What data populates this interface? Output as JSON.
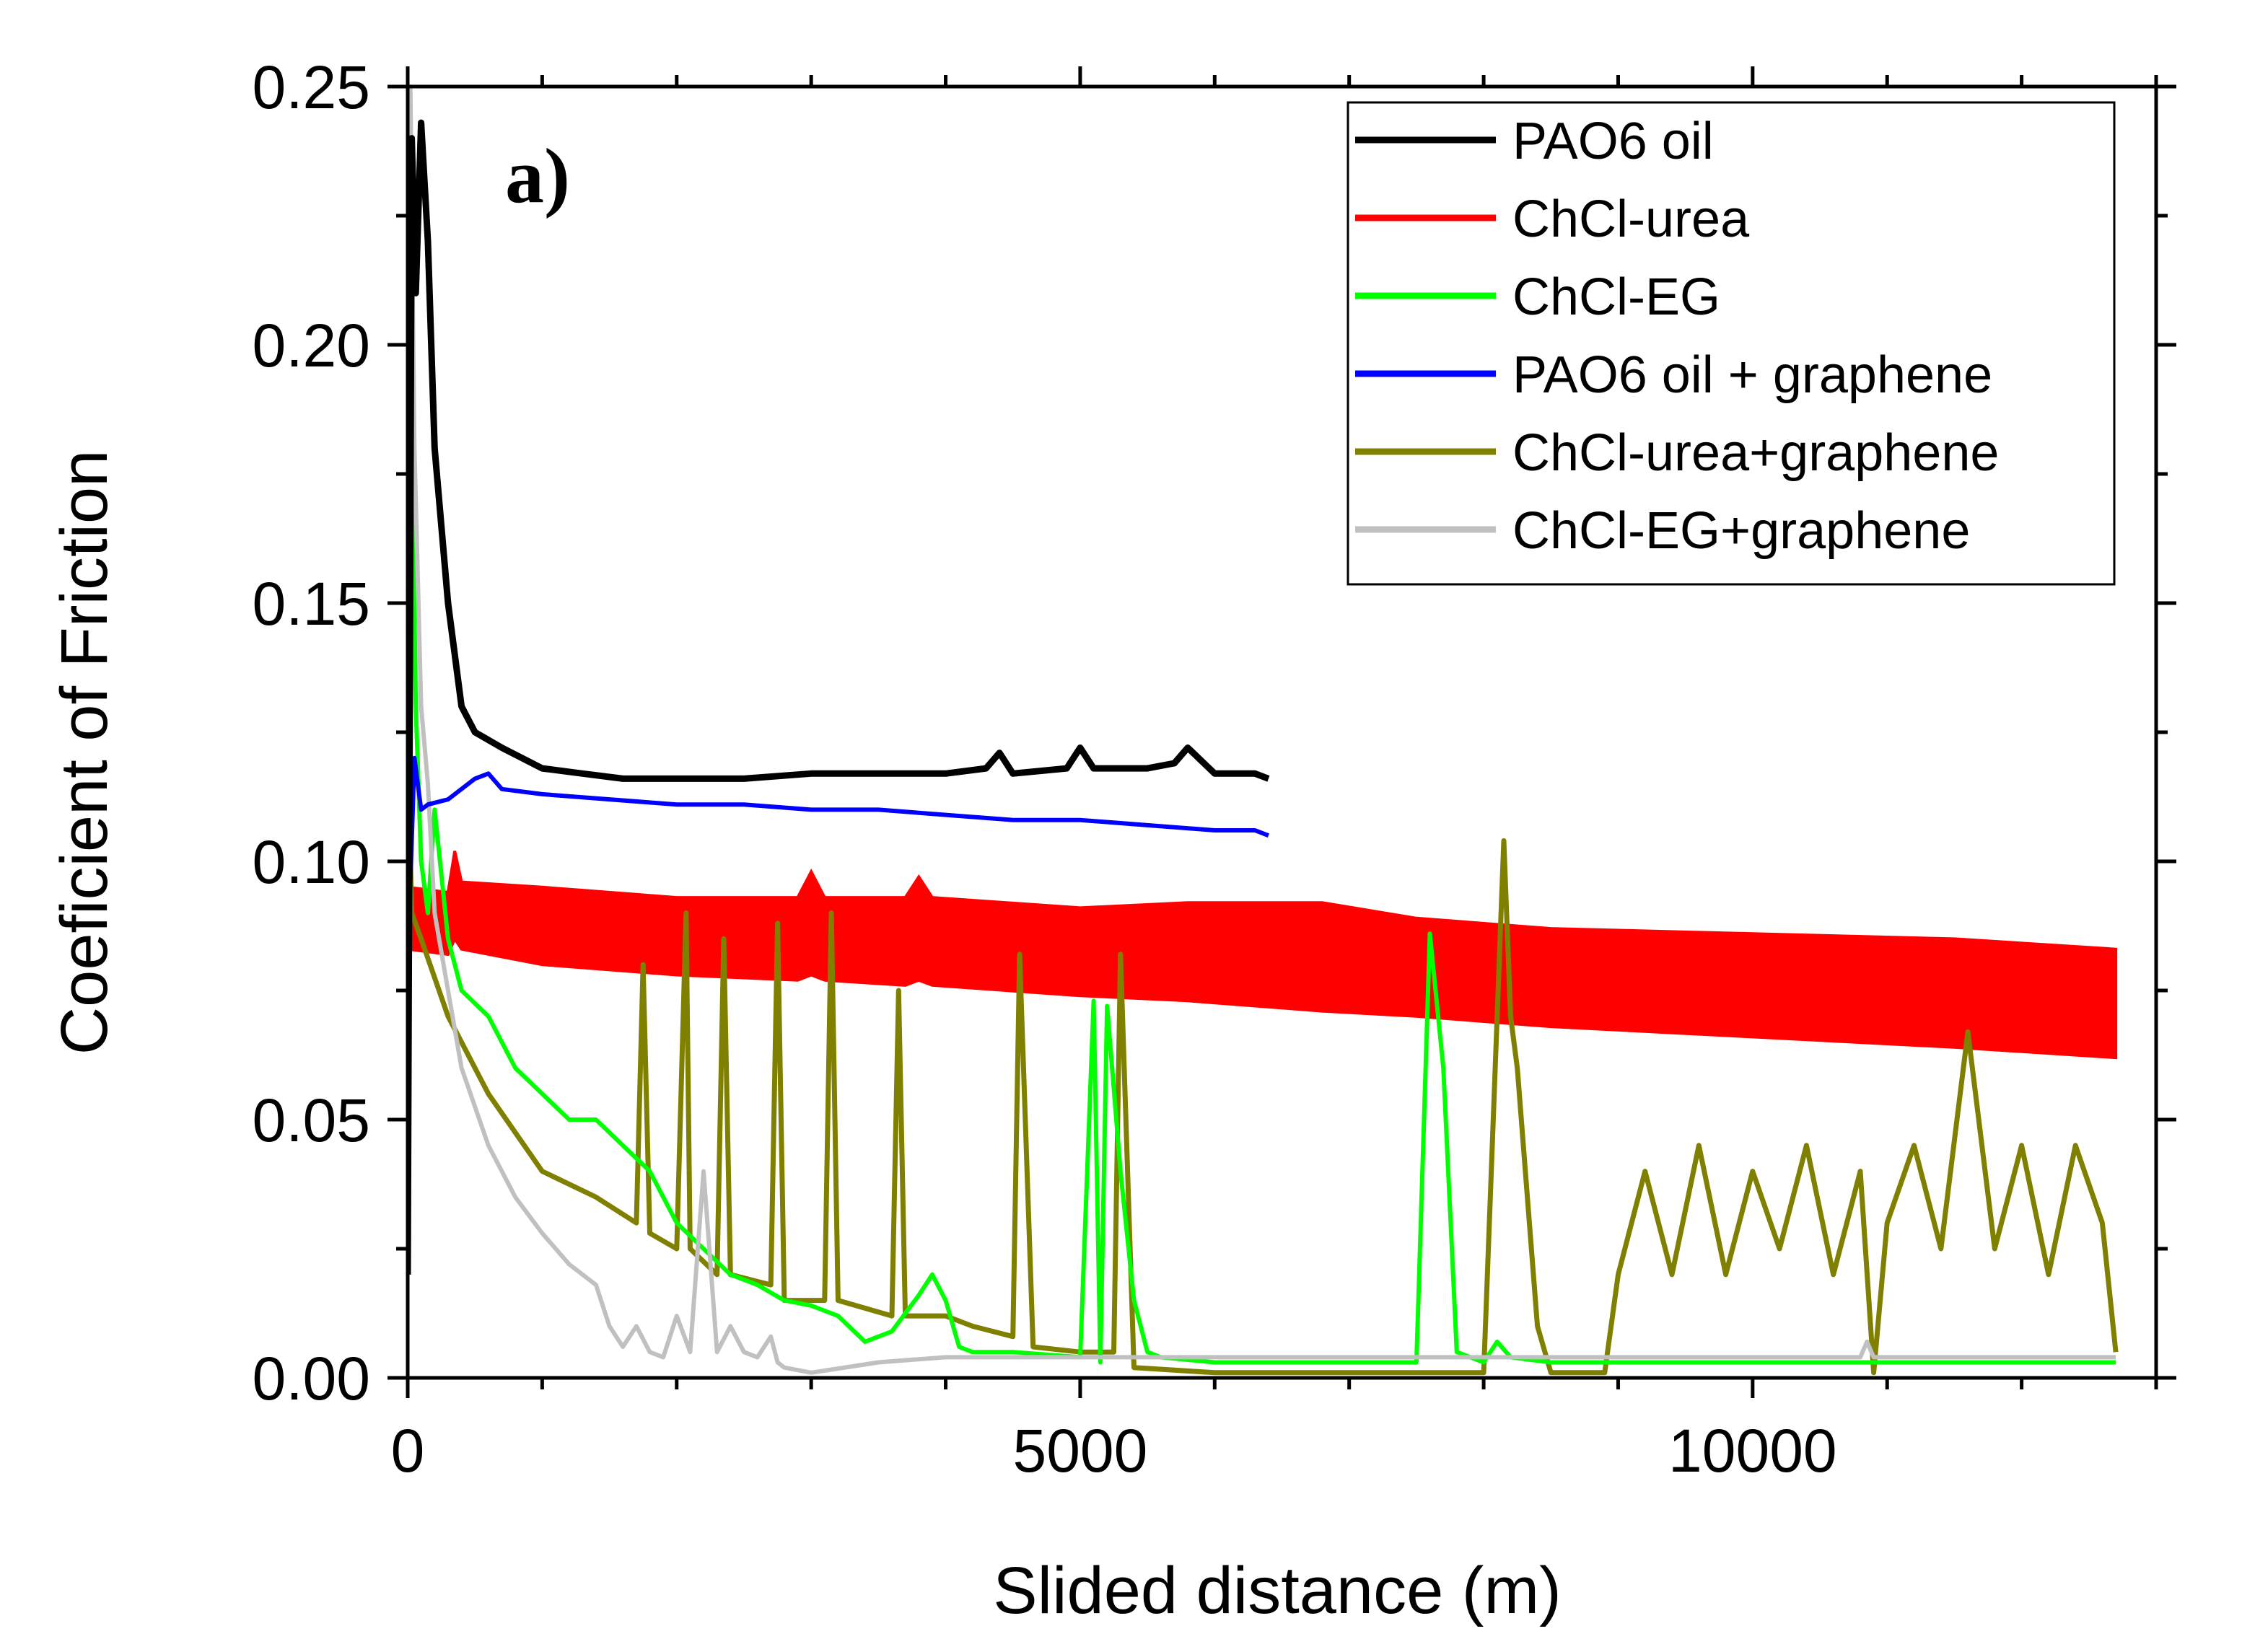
{
  "chart_data": {
    "type": "line",
    "panel_label": "a)",
    "xlabel": "Slided distance (m)",
    "ylabel": "Coeficient of Friction",
    "xlim": [
      0,
      13000
    ],
    "ylim": [
      0,
      0.25
    ],
    "x_ticks": [
      0,
      5000,
      10000
    ],
    "x_tick_labels": [
      "0",
      "5000",
      "10000"
    ],
    "y_ticks": [
      0,
      0.05,
      0.1,
      0.15,
      0.2,
      0.25
    ],
    "y_tick_labels": [
      "0.00",
      "0.05",
      "0.10",
      "0.15",
      "0.20",
      "0.25"
    ],
    "legend_position": "top-right",
    "series": [
      {
        "name": "PAO6 oil",
        "color": "#000000",
        "width": 9,
        "x": [
          0,
          30,
          60,
          100,
          150,
          200,
          300,
          400,
          500,
          700,
          1000,
          1300,
          1600,
          2000,
          2500,
          3000,
          3500,
          4000,
          4300,
          4400,
          4500,
          4900,
          5000,
          5100,
          5500,
          5700,
          5800,
          6000,
          6300,
          6400
        ],
        "y": [
          0.02,
          0.24,
          0.21,
          0.243,
          0.22,
          0.18,
          0.15,
          0.13,
          0.125,
          0.122,
          0.118,
          0.117,
          0.116,
          0.116,
          0.116,
          0.117,
          0.117,
          0.117,
          0.118,
          0.121,
          0.117,
          0.118,
          0.122,
          0.118,
          0.118,
          0.119,
          0.122,
          0.117,
          0.117,
          0.116
        ]
      },
      {
        "name": "ChCl-urea",
        "color": "#ff0000",
        "band": true,
        "x": [
          0,
          300,
          350,
          400,
          1000,
          2000,
          2900,
          3000,
          3100,
          3700,
          3800,
          3900,
          5000,
          5800,
          6800,
          7500,
          8500,
          10000,
          11500,
          12700
        ],
        "y_upper": [
          0.095,
          0.094,
          0.102,
          0.096,
          0.095,
          0.093,
          0.093,
          0.098,
          0.093,
          0.093,
          0.097,
          0.093,
          0.091,
          0.092,
          0.092,
          0.089,
          0.087,
          0.086,
          0.085,
          0.083
        ],
        "y_lower": [
          0.083,
          0.082,
          0.085,
          0.083,
          0.08,
          0.078,
          0.077,
          0.078,
          0.077,
          0.076,
          0.077,
          0.076,
          0.074,
          0.073,
          0.071,
          0.07,
          0.068,
          0.066,
          0.064,
          0.062
        ]
      },
      {
        "name": "ChCl-EG",
        "color": "#00ff00",
        "width": 6,
        "x": [
          0,
          20,
          60,
          100,
          150,
          200,
          300,
          400,
          600,
          800,
          1000,
          1200,
          1400,
          1600,
          1800,
          2000,
          2200,
          2400,
          2600,
          2800,
          3000,
          3200,
          3400,
          3600,
          3800,
          3900,
          4000,
          4100,
          4200,
          4500,
          5000,
          5100,
          5150,
          5200,
          5300,
          5400,
          5500,
          5600,
          6000,
          7000,
          7500,
          7600,
          7700,
          7800,
          8000,
          8100,
          8200,
          8500,
          10000,
          12700
        ],
        "y": [
          0.05,
          0.205,
          0.13,
          0.1,
          0.09,
          0.11,
          0.085,
          0.075,
          0.07,
          0.06,
          0.055,
          0.05,
          0.05,
          0.045,
          0.04,
          0.03,
          0.025,
          0.02,
          0.018,
          0.015,
          0.014,
          0.012,
          0.007,
          0.009,
          0.016,
          0.02,
          0.015,
          0.006,
          0.005,
          0.005,
          0.004,
          0.073,
          0.003,
          0.072,
          0.04,
          0.015,
          0.005,
          0.004,
          0.003,
          0.003,
          0.003,
          0.086,
          0.06,
          0.005,
          0.003,
          0.007,
          0.004,
          0.003,
          0.003,
          0.003
        ]
      },
      {
        "name": "PAO6 oil + graphene",
        "color": "#0000ff",
        "width": 6,
        "x": [
          0,
          50,
          100,
          150,
          300,
          500,
          600,
          700,
          1000,
          1500,
          2000,
          2500,
          3000,
          3500,
          4000,
          4500,
          5000,
          5500,
          6000,
          6300,
          6400
        ],
        "y": [
          0.08,
          0.12,
          0.11,
          0.111,
          0.112,
          0.116,
          0.117,
          0.114,
          0.113,
          0.112,
          0.111,
          0.111,
          0.11,
          0.11,
          0.109,
          0.108,
          0.108,
          0.107,
          0.106,
          0.106,
          0.105
        ]
      },
      {
        "name": "ChCl-urea+graphene",
        "color": "#808000",
        "width": 7,
        "x": [
          0,
          30,
          100,
          300,
          600,
          1000,
          1400,
          1700,
          1750,
          1800,
          2000,
          2070,
          2100,
          2300,
          2350,
          2400,
          2700,
          2750,
          2800,
          3100,
          3150,
          3200,
          3600,
          3650,
          3700,
          4000,
          4200,
          4500,
          4550,
          4650,
          5000,
          5250,
          5300,
          5400,
          6000,
          7000,
          8000,
          8150,
          8200,
          8250,
          8400,
          8500,
          8900,
          9000,
          9200,
          9400,
          9600,
          9800,
          10000,
          10200,
          10400,
          10600,
          10800,
          10900,
          11000,
          11200,
          11400,
          11600,
          11800,
          12000,
          12200,
          12400,
          12600,
          12700
        ],
        "y": [
          0.12,
          0.09,
          0.085,
          0.07,
          0.055,
          0.04,
          0.035,
          0.03,
          0.08,
          0.028,
          0.025,
          0.09,
          0.025,
          0.02,
          0.085,
          0.02,
          0.018,
          0.088,
          0.015,
          0.015,
          0.09,
          0.015,
          0.012,
          0.075,
          0.012,
          0.012,
          0.01,
          0.008,
          0.082,
          0.006,
          0.005,
          0.005,
          0.082,
          0.002,
          0.001,
          0.001,
          0.001,
          0.104,
          0.07,
          0.06,
          0.01,
          0.001,
          0.001,
          0.02,
          0.04,
          0.02,
          0.045,
          0.02,
          0.04,
          0.025,
          0.045,
          0.02,
          0.04,
          0.001,
          0.03,
          0.045,
          0.025,
          0.067,
          0.025,
          0.045,
          0.02,
          0.045,
          0.03,
          0.005
        ]
      },
      {
        "name": "ChCl-EG+graphene",
        "color": "#c0c0c0",
        "width": 6,
        "x": [
          0,
          20,
          50,
          100,
          150,
          200,
          300,
          400,
          600,
          800,
          1000,
          1200,
          1400,
          1500,
          1600,
          1700,
          1800,
          1900,
          2000,
          2100,
          2200,
          2300,
          2400,
          2500,
          2600,
          2700,
          2750,
          2800,
          3000,
          3500,
          4000,
          5000,
          6000,
          8000,
          10000,
          10800,
          10850,
          10900,
          12700
        ],
        "y": [
          0.08,
          0.25,
          0.18,
          0.13,
          0.115,
          0.09,
          0.075,
          0.06,
          0.045,
          0.035,
          0.028,
          0.022,
          0.018,
          0.01,
          0.006,
          0.01,
          0.005,
          0.004,
          0.012,
          0.005,
          0.04,
          0.005,
          0.01,
          0.005,
          0.004,
          0.008,
          0.003,
          0.002,
          0.001,
          0.003,
          0.004,
          0.004,
          0.004,
          0.004,
          0.004,
          0.004,
          0.007,
          0.004,
          0.004
        ]
      }
    ]
  }
}
